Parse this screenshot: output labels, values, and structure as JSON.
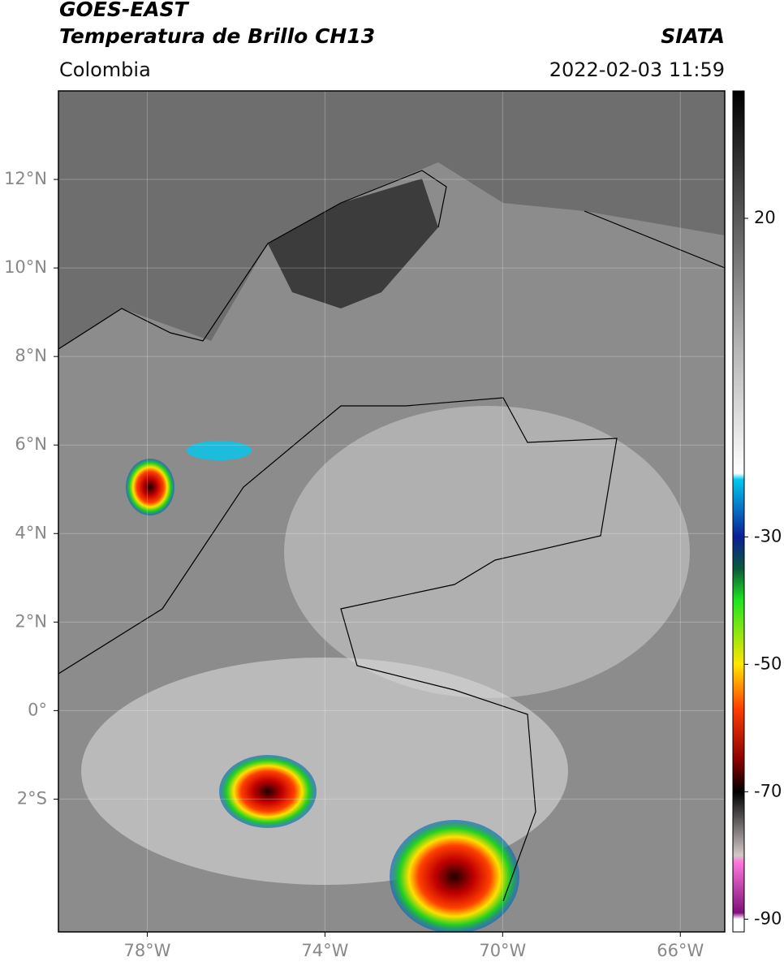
{
  "header": {
    "title": "GOES-EAST",
    "subtitle": "Temperatura de Brillo CH13",
    "source": "SIATA",
    "region": "Colombia",
    "datetime": "2022-02-03 11:59"
  },
  "map": {
    "xlim": [
      -80,
      -65
    ],
    "ylim": [
      -5,
      14
    ],
    "xticks": [
      {
        "value": -78,
        "label": "78°W"
      },
      {
        "value": -74,
        "label": "74°W"
      },
      {
        "value": -70,
        "label": "70°W"
      },
      {
        "value": -66,
        "label": "66°W"
      }
    ],
    "yticks": [
      {
        "value": 12,
        "label": "12°N"
      },
      {
        "value": 10,
        "label": "10°N"
      },
      {
        "value": 8,
        "label": "8°N"
      },
      {
        "value": 6,
        "label": "6°N"
      },
      {
        "value": 4,
        "label": "4°N"
      },
      {
        "value": 2,
        "label": "2°N"
      },
      {
        "value": 0,
        "label": "0°"
      },
      {
        "value": -2,
        "label": "2°S"
      }
    ],
    "grid": true
  },
  "colorbar": {
    "lim": [
      -92,
      40
    ],
    "ticks": [
      20,
      -30,
      -50,
      -70,
      -90
    ],
    "stops": [
      {
        "value": 40,
        "color": "#000000"
      },
      {
        "value": 20,
        "color": "#5a5a5a"
      },
      {
        "value": 0,
        "color": "#b4b4b4"
      },
      {
        "value": -20,
        "color": "#ffffff"
      },
      {
        "value": -21,
        "color": "#00c8f0"
      },
      {
        "value": -30,
        "color": "#0a1e96"
      },
      {
        "value": -35,
        "color": "#0a5a3c"
      },
      {
        "value": -40,
        "color": "#1ee61e"
      },
      {
        "value": -50,
        "color": "#ffe600"
      },
      {
        "value": -57,
        "color": "#ff3c00"
      },
      {
        "value": -65,
        "color": "#8c0000"
      },
      {
        "value": -70,
        "color": "#000000"
      },
      {
        "value": -80,
        "color": "#d2c8c8"
      },
      {
        "value": -81,
        "color": "#ff78dc"
      },
      {
        "value": -89,
        "color": "#80107a"
      },
      {
        "value": -90,
        "color": "#ffffff"
      }
    ]
  }
}
